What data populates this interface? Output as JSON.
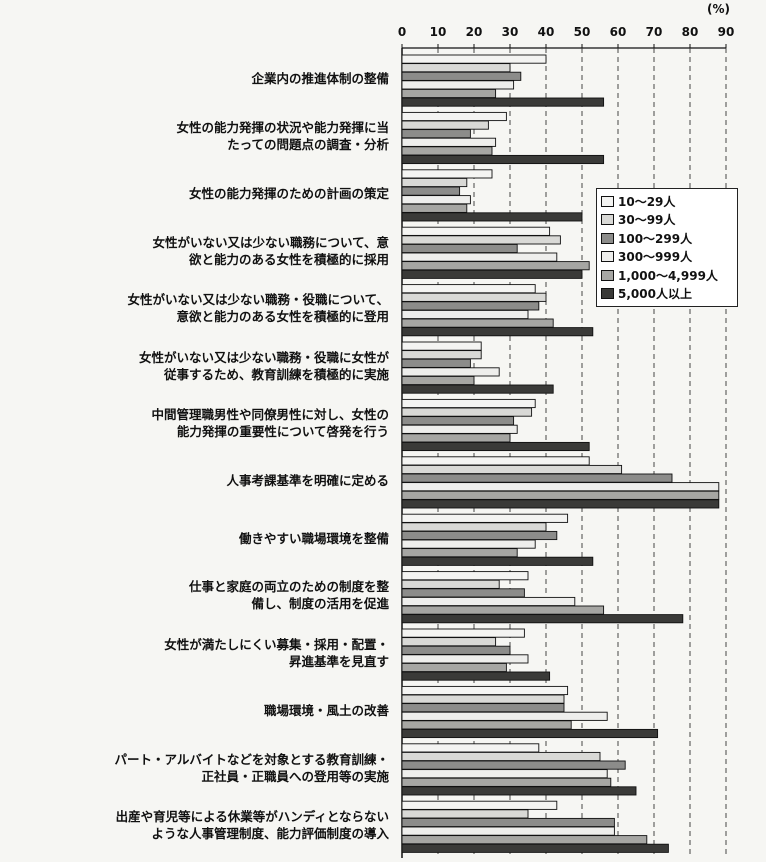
{
  "chart_data": {
    "type": "bar",
    "orientation": "horizontal",
    "unit": "(%)",
    "xlim": [
      0,
      90
    ],
    "ticks": [
      0,
      10,
      20,
      30,
      40,
      50,
      60,
      70,
      80,
      90
    ],
    "grid": "dashed vertical gridlines",
    "legend_position": "right",
    "series": [
      {
        "name": "10～29人",
        "color": "#f4f4f2",
        "values": [
          40,
          29,
          25,
          41,
          37,
          22,
          37,
          52,
          46,
          35,
          34,
          46,
          38,
          43
        ]
      },
      {
        "name": "30～99人",
        "color": "#d9d9d6",
        "values": [
          30,
          24,
          18,
          44,
          40,
          22,
          36,
          61,
          40,
          27,
          26,
          45,
          55,
          35
        ]
      },
      {
        "name": "100～299人",
        "color": "#8c8c8a",
        "values": [
          33,
          19,
          16,
          32,
          38,
          19,
          31,
          75,
          43,
          34,
          30,
          45,
          62,
          59
        ]
      },
      {
        "name": "300～999人",
        "color": "#eeeeec",
        "values": [
          31,
          26,
          19,
          43,
          35,
          27,
          32,
          88,
          37,
          48,
          35,
          57,
          57,
          59
        ]
      },
      {
        "name": "1,000～4,999人",
        "color": "#a6a6a3",
        "values": [
          26,
          25,
          18,
          52,
          42,
          20,
          30,
          88,
          32,
          56,
          29,
          47,
          58,
          68
        ]
      },
      {
        "name": "5,000人以上",
        "color": "#3a3a38",
        "values": [
          56,
          56,
          50,
          50,
          53,
          42,
          52,
          88,
          53,
          78,
          41,
          71,
          65,
          74
        ]
      }
    ],
    "categories": [
      [
        "企業内の推進体制の整備"
      ],
      [
        "女性の能力発揮の状況や能力発揮に当",
        "たっての問題点の調査・分析"
      ],
      [
        "女性の能力発揮のための計画の策定"
      ],
      [
        "女性がいない又は少ない職務について、意",
        "欲と能力のある女性を積極的に採用"
      ],
      [
        "女性がいない又は少ない職務・役職について、",
        "意欲と能力のある女性を積極的に登用"
      ],
      [
        "女性がいない又は少ない職務・役職に女性が",
        "従事するため、教育訓練を積極的に実施"
      ],
      [
        "中間管理職男性や同僚男性に対し、女性の",
        "能力発揮の重要性について啓発を行う"
      ],
      [
        "人事考課基準を明確に定める"
      ],
      [
        "働きやすい職場環境を整備"
      ],
      [
        "仕事と家庭の両立のための制度を整",
        "備し、制度の活用を促進"
      ],
      [
        "女性が満たしにくい募集・採用・配置・",
        "昇進基準を見直す"
      ],
      [
        "職場環境・風土の改善"
      ],
      [
        "パート・アルバイトなどを対象とする教育訓練・",
        "正社員・正職員への登用等の実施"
      ],
      [
        "出産や育児等による休業等がハンディとならない",
        "ような人事管理制度、能力評価制度の導入"
      ]
    ]
  }
}
